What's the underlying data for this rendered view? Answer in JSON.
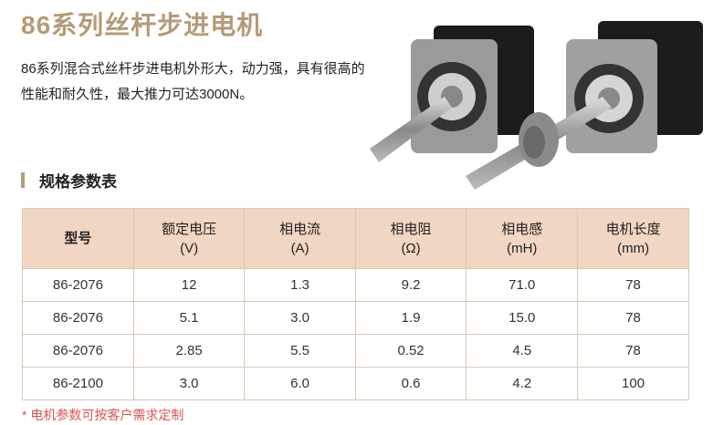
{
  "title": "86系列丝杆步进电机",
  "description": "86系列混合式丝杆步进电机外形大，动力强，具有很高的性能和耐久性，最大推力可达3000N。",
  "section_title": "规格参数表",
  "table": {
    "headers": [
      [
        "型号",
        ""
      ],
      [
        "额定电压",
        "(V)"
      ],
      [
        "相电流",
        "(A)"
      ],
      [
        "相电阻",
        "(Ω)"
      ],
      [
        "相电感",
        "(mH)"
      ],
      [
        "电机长度",
        "(mm)"
      ]
    ],
    "rows": [
      [
        "86-2076",
        "12",
        "1.3",
        "9.2",
        "71.0",
        "78"
      ],
      [
        "86-2076",
        "5.1",
        "3.0",
        "1.9",
        "15.0",
        "78"
      ],
      [
        "86-2076",
        "2.85",
        "5.5",
        "0.52",
        "4.5",
        "78"
      ],
      [
        "86-2100",
        "3.0",
        "6.0",
        "0.6",
        "4.2",
        "100"
      ]
    ]
  },
  "note": "* 电机参数可按客户需求定制",
  "colors": {
    "accent": "#b59a78",
    "header_bg": "#f0d6c3",
    "note": "#d9534f"
  }
}
